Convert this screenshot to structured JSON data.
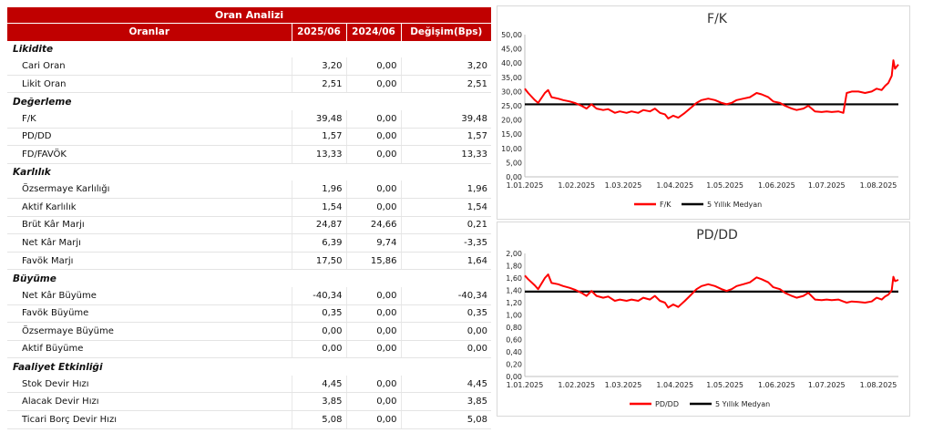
{
  "table": {
    "title": "Oran Analizi",
    "columns": [
      "Oranlar",
      "2025/06",
      "2024/06",
      "Değişim(Bps)"
    ],
    "sections": [
      {
        "name": "Likidite",
        "rows": [
          {
            "label": "Cari Oran",
            "v2025": "3,20",
            "v2024": "0,00",
            "change": "3,20"
          },
          {
            "label": "Likit Oran",
            "v2025": "2,51",
            "v2024": "0,00",
            "change": "2,51"
          }
        ]
      },
      {
        "name": "Değerleme",
        "rows": [
          {
            "label": "F/K",
            "v2025": "39,48",
            "v2024": "0,00",
            "change": "39,48"
          },
          {
            "label": "PD/DD",
            "v2025": "1,57",
            "v2024": "0,00",
            "change": "1,57"
          },
          {
            "label": "FD/FAVÖK",
            "v2025": "13,33",
            "v2024": "0,00",
            "change": "13,33"
          }
        ]
      },
      {
        "name": "Karlılık",
        "rows": [
          {
            "label": "Özsermaye Karlılığı",
            "v2025": "1,96",
            "v2024": "0,00",
            "change": "1,96"
          },
          {
            "label": "Aktif Karlılık",
            "v2025": "1,54",
            "v2024": "0,00",
            "change": "1,54"
          },
          {
            "label": "Brüt Kâr Marjı",
            "v2025": "24,87",
            "v2024": "24,66",
            "change": "0,21"
          },
          {
            "label": "Net Kâr Marjı",
            "v2025": "6,39",
            "v2024": "9,74",
            "change": "-3,35"
          },
          {
            "label": "Favök Marjı",
            "v2025": "17,50",
            "v2024": "15,86",
            "change": "1,64"
          }
        ]
      },
      {
        "name": "Büyüme",
        "rows": [
          {
            "label": "Net Kâr Büyüme",
            "v2025": "-40,34",
            "v2024": "0,00",
            "change": "-40,34"
          },
          {
            "label": "Favök Büyüme",
            "v2025": "0,35",
            "v2024": "0,00",
            "change": "0,35"
          },
          {
            "label": "Özsermaye Büyüme",
            "v2025": "0,00",
            "v2024": "0,00",
            "change": "0,00"
          },
          {
            "label": "Aktif Büyüme",
            "v2025": "0,00",
            "v2024": "0,00",
            "change": "0,00"
          }
        ]
      },
      {
        "name": "Faaliyet Etkinliği",
        "rows": [
          {
            "label": "Stok Devir Hızı",
            "v2025": "4,45",
            "v2024": "0,00",
            "change": "4,45"
          },
          {
            "label": "Alacak Devir Hızı",
            "v2025": "3,85",
            "v2024": "0,00",
            "change": "3,85"
          },
          {
            "label": "Ticari Borç Devir Hızı",
            "v2025": "5,08",
            "v2024": "0,00",
            "change": "5,08"
          }
        ]
      }
    ]
  },
  "colors": {
    "header": "#c00000",
    "series": "#ff0000",
    "median": "#000000"
  },
  "chart_data": [
    {
      "type": "line",
      "title": "F/K",
      "ylim": [
        0,
        50
      ],
      "yticks": [
        "0,00",
        "5,00",
        "10,00",
        "15,00",
        "20,00",
        "25,00",
        "30,00",
        "35,00",
        "40,00",
        "45,00",
        "50,00"
      ],
      "ytick_values": [
        0,
        5,
        10,
        15,
        20,
        25,
        30,
        35,
        40,
        45,
        50
      ],
      "x_range": [
        "2025-01-01",
        "2025-08-13"
      ],
      "xticks": [
        "1.01.2025",
        "1.02.2025",
        "1.03.2025",
        "1.04.2025",
        "1.05.2025",
        "1.06.2025",
        "1.07.2025",
        "1.08.2025"
      ],
      "xtick_dates": [
        "2025-01-01",
        "2025-02-01",
        "2025-03-01",
        "2025-04-01",
        "2025-05-01",
        "2025-06-01",
        "2025-07-01",
        "2025-08-01"
      ],
      "legend_position": "bottom",
      "series": [
        {
          "name": "F/K",
          "color": "#ff0000",
          "points": [
            [
              "2025-01-01",
              31
            ],
            [
              "2025-01-03",
              29.5
            ],
            [
              "2025-01-07",
              27
            ],
            [
              "2025-01-09",
              26
            ],
            [
              "2025-01-13",
              29.5
            ],
            [
              "2025-01-15",
              30.5
            ],
            [
              "2025-01-17",
              28
            ],
            [
              "2025-01-21",
              27.5
            ],
            [
              "2025-01-24",
              27
            ],
            [
              "2025-01-28",
              26.5
            ],
            [
              "2025-01-31",
              26
            ],
            [
              "2025-02-04",
              25
            ],
            [
              "2025-02-07",
              24
            ],
            [
              "2025-02-10",
              25.5
            ],
            [
              "2025-02-13",
              24
            ],
            [
              "2025-02-17",
              23.5
            ],
            [
              "2025-02-20",
              23.8
            ],
            [
              "2025-02-24",
              22.5
            ],
            [
              "2025-02-27",
              23
            ],
            [
              "2025-03-03",
              22.5
            ],
            [
              "2025-03-06",
              23
            ],
            [
              "2025-03-10",
              22.5
            ],
            [
              "2025-03-13",
              23.5
            ],
            [
              "2025-03-17",
              23
            ],
            [
              "2025-03-20",
              24
            ],
            [
              "2025-03-23",
              22.5
            ],
            [
              "2025-03-26",
              22
            ],
            [
              "2025-03-28",
              20.5
            ],
            [
              "2025-03-31",
              21.5
            ],
            [
              "2025-04-03",
              20.8
            ],
            [
              "2025-04-07",
              22.5
            ],
            [
              "2025-04-10",
              24
            ],
            [
              "2025-04-14",
              26
            ],
            [
              "2025-04-17",
              27
            ],
            [
              "2025-04-21",
              27.5
            ],
            [
              "2025-04-25",
              27
            ],
            [
              "2025-04-29",
              26
            ],
            [
              "2025-05-02",
              25.5
            ],
            [
              "2025-05-05",
              26
            ],
            [
              "2025-05-08",
              27
            ],
            [
              "2025-05-12",
              27.5
            ],
            [
              "2025-05-16",
              28
            ],
            [
              "2025-05-20",
              29.5
            ],
            [
              "2025-05-23",
              29
            ],
            [
              "2025-05-27",
              28
            ],
            [
              "2025-05-30",
              26.5
            ],
            [
              "2025-06-03",
              26
            ],
            [
              "2025-06-06",
              25
            ],
            [
              "2025-06-10",
              24
            ],
            [
              "2025-06-13",
              23.5
            ],
            [
              "2025-06-17",
              24
            ],
            [
              "2025-06-20",
              25
            ],
            [
              "2025-06-24",
              23
            ],
            [
              "2025-06-28",
              22.8
            ],
            [
              "2025-07-01",
              23
            ],
            [
              "2025-07-04",
              22.8
            ],
            [
              "2025-07-08",
              23
            ],
            [
              "2025-07-11",
              22.5
            ],
            [
              "2025-07-13",
              29.5
            ],
            [
              "2025-07-16",
              30
            ],
            [
              "2025-07-20",
              30
            ],
            [
              "2025-07-24",
              29.5
            ],
            [
              "2025-07-28",
              30
            ],
            [
              "2025-07-31",
              31
            ],
            [
              "2025-08-03",
              30.5
            ],
            [
              "2025-08-05",
              32
            ],
            [
              "2025-08-07",
              33
            ],
            [
              "2025-08-09",
              35.5
            ],
            [
              "2025-08-10",
              41
            ],
            [
              "2025-08-11",
              38
            ],
            [
              "2025-08-13",
              39.5
            ]
          ]
        },
        {
          "name": "5 Yıllık Medyan",
          "color": "#000000",
          "constant": 25.5
        }
      ]
    },
    {
      "type": "line",
      "title": "PD/DD",
      "ylim": [
        0,
        2
      ],
      "yticks": [
        "0,00",
        "0,20",
        "0,40",
        "0,60",
        "0,80",
        "1,00",
        "1,20",
        "1,40",
        "1,60",
        "1,80",
        "2,00"
      ],
      "ytick_values": [
        0,
        0.2,
        0.4,
        0.6,
        0.8,
        1.0,
        1.2,
        1.4,
        1.6,
        1.8,
        2.0
      ],
      "x_range": [
        "2025-01-01",
        "2025-08-13"
      ],
      "xticks": [
        "1.01.2025",
        "1.02.2025",
        "1.03.2025",
        "1.04.2025",
        "1.05.2025",
        "1.06.2025",
        "1.07.2025",
        "1.08.2025"
      ],
      "xtick_dates": [
        "2025-01-01",
        "2025-02-01",
        "2025-03-01",
        "2025-04-01",
        "2025-05-01",
        "2025-06-01",
        "2025-07-01",
        "2025-08-01"
      ],
      "legend_position": "bottom",
      "series": [
        {
          "name": "PD/DD",
          "color": "#ff0000",
          "points": [
            [
              "2025-01-01",
              1.64
            ],
            [
              "2025-01-03",
              1.58
            ],
            [
              "2025-01-07",
              1.48
            ],
            [
              "2025-01-09",
              1.42
            ],
            [
              "2025-01-13",
              1.6
            ],
            [
              "2025-01-15",
              1.66
            ],
            [
              "2025-01-17",
              1.52
            ],
            [
              "2025-01-21",
              1.5
            ],
            [
              "2025-01-24",
              1.47
            ],
            [
              "2025-01-28",
              1.44
            ],
            [
              "2025-01-31",
              1.41
            ],
            [
              "2025-02-04",
              1.36
            ],
            [
              "2025-02-07",
              1.31
            ],
            [
              "2025-02-10",
              1.39
            ],
            [
              "2025-02-13",
              1.31
            ],
            [
              "2025-02-17",
              1.28
            ],
            [
              "2025-02-20",
              1.3
            ],
            [
              "2025-02-24",
              1.23
            ],
            [
              "2025-02-27",
              1.25
            ],
            [
              "2025-03-03",
              1.23
            ],
            [
              "2025-03-06",
              1.25
            ],
            [
              "2025-03-10",
              1.23
            ],
            [
              "2025-03-13",
              1.28
            ],
            [
              "2025-03-17",
              1.25
            ],
            [
              "2025-03-20",
              1.31
            ],
            [
              "2025-03-23",
              1.23
            ],
            [
              "2025-03-26",
              1.2
            ],
            [
              "2025-03-28",
              1.12
            ],
            [
              "2025-03-31",
              1.17
            ],
            [
              "2025-04-03",
              1.13
            ],
            [
              "2025-04-07",
              1.23
            ],
            [
              "2025-04-10",
              1.31
            ],
            [
              "2025-04-14",
              1.42
            ],
            [
              "2025-04-17",
              1.47
            ],
            [
              "2025-04-21",
              1.5
            ],
            [
              "2025-04-25",
              1.47
            ],
            [
              "2025-04-29",
              1.42
            ],
            [
              "2025-05-02",
              1.39
            ],
            [
              "2025-05-05",
              1.42
            ],
            [
              "2025-05-08",
              1.47
            ],
            [
              "2025-05-12",
              1.5
            ],
            [
              "2025-05-16",
              1.53
            ],
            [
              "2025-05-20",
              1.61
            ],
            [
              "2025-05-23",
              1.58
            ],
            [
              "2025-05-27",
              1.53
            ],
            [
              "2025-05-30",
              1.45
            ],
            [
              "2025-06-03",
              1.42
            ],
            [
              "2025-06-06",
              1.36
            ],
            [
              "2025-06-10",
              1.31
            ],
            [
              "2025-06-13",
              1.28
            ],
            [
              "2025-06-17",
              1.31
            ],
            [
              "2025-06-20",
              1.36
            ],
            [
              "2025-06-24",
              1.25
            ],
            [
              "2025-06-28",
              1.24
            ],
            [
              "2025-07-01",
              1.25
            ],
            [
              "2025-07-04",
              1.24
            ],
            [
              "2025-07-08",
              1.25
            ],
            [
              "2025-07-11",
              1.22
            ],
            [
              "2025-07-13",
              1.2
            ],
            [
              "2025-07-16",
              1.22
            ],
            [
              "2025-07-20",
              1.21
            ],
            [
              "2025-07-24",
              1.2
            ],
            [
              "2025-07-28",
              1.22
            ],
            [
              "2025-07-31",
              1.28
            ],
            [
              "2025-08-03",
              1.25
            ],
            [
              "2025-08-05",
              1.3
            ],
            [
              "2025-08-07",
              1.33
            ],
            [
              "2025-08-09",
              1.4
            ],
            [
              "2025-08-10",
              1.62
            ],
            [
              "2025-08-11",
              1.55
            ],
            [
              "2025-08-13",
              1.57
            ]
          ]
        },
        {
          "name": "5 Yıllık Medyan",
          "color": "#000000",
          "constant": 1.38
        }
      ]
    }
  ]
}
